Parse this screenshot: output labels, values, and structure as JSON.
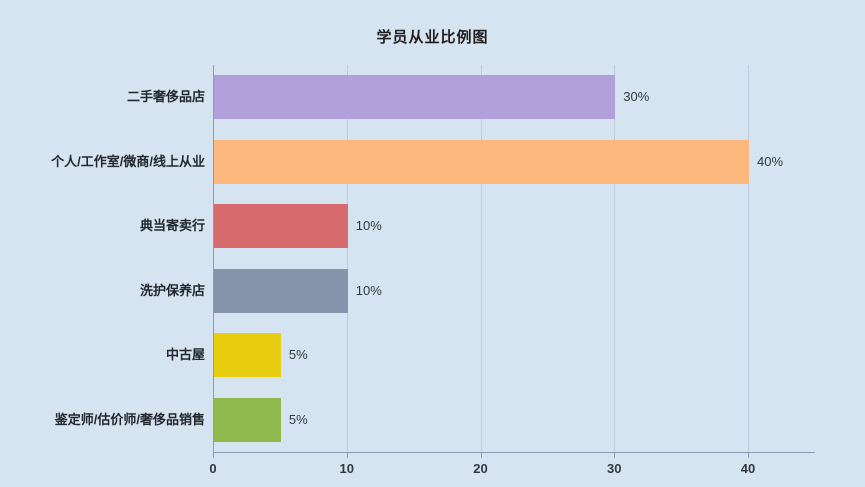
{
  "colors": {
    "background": "#d6e3f1",
    "axis": "#8a9cb2",
    "grid": "#bccbdc",
    "text": "#2b2b2b"
  },
  "chart_data": {
    "type": "bar",
    "orientation": "horizontal",
    "title": "学员从业比例图",
    "categories": [
      "二手奢侈品店",
      "个人/工作室/微商/线上从业",
      "典当寄卖行",
      "洗护保养店",
      "中古屋",
      "鉴定师/估价师/奢侈品销售"
    ],
    "values": [
      30,
      40,
      10,
      10,
      5,
      5
    ],
    "value_labels": [
      "30%",
      "40%",
      "10%",
      "10%",
      "5%",
      "5%"
    ],
    "bar_colors": [
      "#b2a0db",
      "#fdb97d",
      "#d76b6e",
      "#8793aa",
      "#e8cd11",
      "#90b94e"
    ],
    "xlabel": "",
    "ylabel": "",
    "xlim": [
      0,
      40
    ],
    "x_ticks": [
      0,
      10,
      20,
      30,
      40
    ],
    "grid": true,
    "legend": false
  }
}
